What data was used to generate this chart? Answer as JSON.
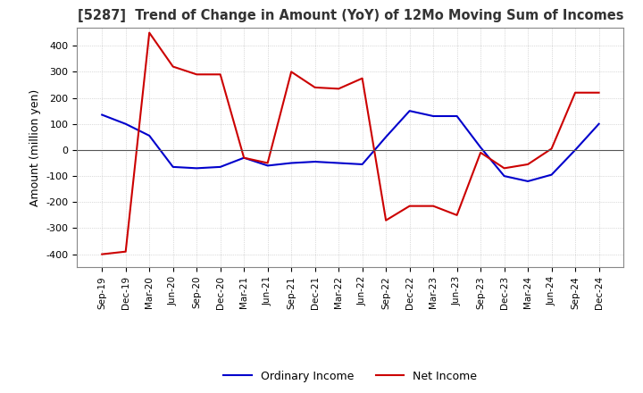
{
  "title": "[5287]  Trend of Change in Amount (YoY) of 12Mo Moving Sum of Incomes",
  "ylabel": "Amount (million yen)",
  "ylim": [
    -450,
    470
  ],
  "yticks": [
    -400,
    -300,
    -200,
    -100,
    0,
    100,
    200,
    300,
    400
  ],
  "background_color": "#ffffff",
  "grid_color": "#bbbbbb",
  "ordinary_income_color": "#0000cc",
  "net_income_color": "#cc0000",
  "x_labels": [
    "Sep-19",
    "Dec-19",
    "Mar-20",
    "Jun-20",
    "Sep-20",
    "Dec-20",
    "Mar-21",
    "Jun-21",
    "Sep-21",
    "Dec-21",
    "Mar-22",
    "Jun-22",
    "Sep-22",
    "Dec-22",
    "Mar-23",
    "Jun-23",
    "Sep-23",
    "Dec-23",
    "Mar-24",
    "Jun-24",
    "Sep-24",
    "Dec-24"
  ],
  "ordinary_income": [
    135,
    100,
    55,
    -65,
    -70,
    -65,
    -30,
    -60,
    -50,
    -45,
    -50,
    -55,
    50,
    150,
    130,
    130,
    10,
    -100,
    -120,
    -95,
    0,
    100
  ],
  "net_income": [
    -400,
    -390,
    450,
    320,
    290,
    290,
    -30,
    -50,
    300,
    240,
    235,
    275,
    -270,
    -215,
    -215,
    -250,
    -10,
    -70,
    -55,
    5,
    220,
    220
  ]
}
